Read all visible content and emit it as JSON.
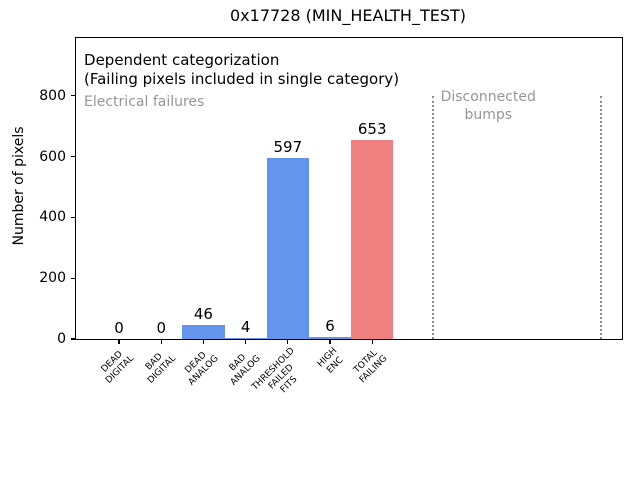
{
  "chart_data": {
    "type": "bar",
    "title": "0x17728 (MIN_HEALTH_TEST)",
    "xlabel": "",
    "ylabel": "Number of pixels",
    "categories": [
      "DEAD\nDIGITAL",
      "BAD\nDIGITAL",
      "DEAD\nANALOG",
      "BAD\nANALOG",
      "THRESHOLD\nFAILED\nFITS",
      "HIGH\nENC",
      "TOTAL\nFAILING"
    ],
    "values": [
      0,
      0,
      46,
      4,
      597,
      6,
      653
    ],
    "value_labels": [
      "0",
      "0",
      "46",
      "4",
      "597",
      "6",
      "653"
    ],
    "bar_colors": [
      "#6495ed",
      "#6495ed",
      "#6495ed",
      "#6495ed",
      "#6495ed",
      "#6495ed",
      "#f08080"
    ],
    "yticks": [
      0,
      200,
      400,
      600,
      800
    ],
    "ylim": [
      0,
      990
    ],
    "xlim": [
      -1.02,
      11.92
    ],
    "bar_width": 1.0,
    "grid": false,
    "legend": null,
    "vlines": {
      "x": [
        7.45,
        11.43
      ],
      "y_range": [
        0,
        800
      ],
      "style": "dotted",
      "color": "#8c8c8c"
    },
    "annotations": [
      {
        "text": "Dependent categorization\n(Failing pixels included in single category)",
        "x": -0.83,
        "y_top": 947,
        "ha": "left",
        "color": "#000000",
        "font_px": 15,
        "line_h": 19
      },
      {
        "text": "Electrical failures",
        "x": -0.83,
        "y_top": 806,
        "ha": "left",
        "color": "#969696",
        "font_px": 14,
        "line_h": 17
      },
      {
        "text": "Disconnected\nbumps",
        "x": 8.75,
        "y_top": 826,
        "ha": "center",
        "color": "#969696",
        "font_px": 14,
        "line_h": 18
      }
    ]
  }
}
